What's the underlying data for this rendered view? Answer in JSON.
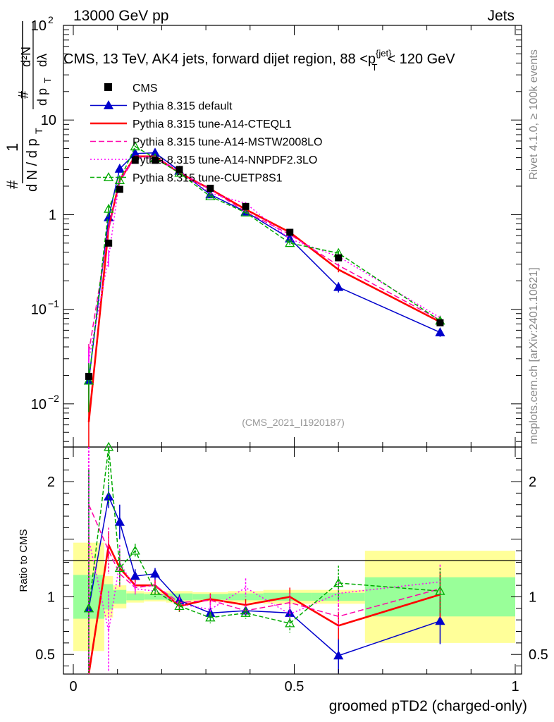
{
  "header": {
    "left": "13000 GeV pp",
    "right": "Jets"
  },
  "title_parts": {
    "main": "CMS, 13 TeV, AK4 jets, forward dijet region, 88 <",
    "var": "p",
    "sup": "{jet}",
    "sub": "T",
    "end": "< 120 GeV"
  },
  "side_labels": {
    "rivet": "Rivet 4.1.0, ≥ 100k events",
    "mcplots": "mcplots.cern.ch [arXiv:2401.10621]"
  },
  "analysis_id": "(CMS_2021_I1920187)",
  "y_label_main": {
    "num": "# 1",
    "den": "# d N / d p_T",
    "inner": "d²N / d p_T dλ",
    "prefix": "#"
  },
  "chart_data": {
    "type": "line",
    "xlabel": "groomed pTD2 (charged-only)",
    "xlim": [
      0,
      1
    ],
    "x_ticks": [
      "0",
      "0.5",
      "1"
    ],
    "main_yscale": "log",
    "main_ylim": [
      0.0035,
      100
    ],
    "main_y_ticks": [
      {
        "base": "10",
        "exp": "−2",
        "v": 0.01
      },
      {
        "base": "10",
        "exp": "−1",
        "v": 0.1
      },
      {
        "base": "1",
        "exp": "",
        "v": 1
      },
      {
        "base": "10",
        "exp": "",
        "v": 10
      },
      {
        "base": "10",
        "exp": "2",
        "v": 100
      }
    ],
    "ratio_ylabel": "Ratio to CMS",
    "ratio_ylim": [
      0.33,
      2.3
    ],
    "ratio_y_ticks": [
      "0.5",
      "1",
      "2"
    ],
    "ratio_y_tick_values": [
      0.5,
      1,
      2
    ],
    "data": {
      "name": "CMS",
      "x": [
        0.035,
        0.08,
        0.105,
        0.14,
        0.185,
        0.24,
        0.31,
        0.39,
        0.49,
        0.6,
        0.83
      ],
      "y": [
        0.0195,
        0.5,
        1.85,
        3.75,
        3.75,
        3.0,
        1.9,
        1.22,
        0.65,
        0.35,
        0.072
      ],
      "xlo": [
        0.0,
        0.07,
        0.09,
        0.12,
        0.16,
        0.21,
        0.27,
        0.35,
        0.43,
        0.54,
        0.66
      ],
      "xhi": [
        0.07,
        0.09,
        0.12,
        0.16,
        0.21,
        0.27,
        0.35,
        0.43,
        0.54,
        0.66,
        1.0
      ],
      "band_yellow": [
        0.47,
        0.18,
        0.1,
        0.05,
        0.04,
        0.05,
        0.04,
        0.05,
        0.06,
        0.06,
        0.4
      ],
      "band_green": [
        0.19,
        0.11,
        0.06,
        0.03,
        0.025,
        0.03,
        0.025,
        0.03,
        0.035,
        0.035,
        0.17
      ]
    },
    "series": [
      {
        "name": "Pythia 8.315 default",
        "color": "#0000cc",
        "dash": "",
        "marker": "triangle-filled",
        "ratio": [
          0.9,
          1.87,
          1.65,
          1.18,
          1.2,
          0.97,
          0.86,
          0.88,
          0.86,
          0.49,
          0.79
        ],
        "ratio_err": [
          1.2,
          0.1,
          0.15,
          0.06,
          0.05,
          0.05,
          0.05,
          0.05,
          0.07,
          0.15,
          0.2
        ]
      },
      {
        "name": "Pythia 8.315 tune-A14-CTEQL1",
        "color": "#ff0000",
        "dash": "",
        "marker": "none",
        "ratio": [
          0.33,
          1.45,
          1.25,
          1.1,
          1.1,
          0.92,
          0.98,
          0.93,
          1.0,
          0.75,
          1.02
        ],
        "ratio_err": [
          1.2,
          0.12,
          0.1,
          0.05,
          0.05,
          0.05,
          0.05,
          0.05,
          0.08,
          0.12,
          0.2
        ]
      },
      {
        "name": "Pythia 8.315 tune-A14-MSTW2008LO",
        "color": "#ff00aa",
        "dash": "8,4",
        "marker": "none",
        "ratio": [
          1.8,
          1.4,
          1.2,
          1.08,
          1.1,
          0.95,
          0.97,
          0.88,
          0.95,
          0.83,
          1.07
        ],
        "ratio_err": [
          1.0,
          0.2,
          0.12,
          0.05,
          0.05,
          0.05,
          0.05,
          0.05,
          0.08,
          0.1,
          0.18
        ]
      },
      {
        "name": "Pythia 8.315 tune-A14-NNPDF2.3LO",
        "color": "#ff00ff",
        "dash": "2,3",
        "marker": "none",
        "ratio": [
          1.5,
          0.7,
          1.3,
          1.07,
          1.05,
          0.94,
          0.89,
          1.08,
          0.85,
          1.03,
          1.13
        ],
        "ratio_err": [
          1.2,
          0.35,
          0.15,
          0.05,
          0.05,
          0.05,
          0.06,
          0.08,
          0.08,
          0.1,
          0.15
        ]
      },
      {
        "name": "Pythia 8.315 tune-CUETP8S1",
        "color": "#00aa00",
        "dash": "6,3",
        "marker": "triangle-open",
        "ratio": [
          0.9,
          2.3,
          1.25,
          1.4,
          1.05,
          0.92,
          0.82,
          0.86,
          0.77,
          1.12,
          1.05
        ],
        "ratio_err": [
          1.2,
          0.5,
          0.15,
          0.06,
          0.05,
          0.05,
          0.05,
          0.05,
          0.08,
          0.15,
          0.2
        ]
      }
    ]
  }
}
